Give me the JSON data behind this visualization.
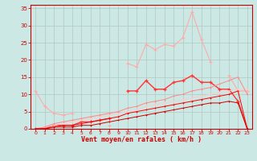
{
  "title": "",
  "xlabel": "Vent moyen/en rafales ( km/h )",
  "ylabel": "",
  "bg_color": "#cce8e4",
  "grid_color": "#b0c8c4",
  "xlim": [
    -0.5,
    23.5
  ],
  "ylim": [
    0,
    36
  ],
  "yticks": [
    0,
    5,
    10,
    15,
    20,
    25,
    30,
    35
  ],
  "xticks": [
    0,
    1,
    2,
    3,
    4,
    5,
    6,
    7,
    8,
    9,
    10,
    11,
    12,
    13,
    14,
    15,
    16,
    17,
    18,
    19,
    20,
    21,
    22,
    23
  ],
  "x": [
    0,
    1,
    2,
    3,
    4,
    5,
    6,
    7,
    8,
    9,
    10,
    11,
    12,
    13,
    14,
    15,
    16,
    17,
    18,
    19,
    20,
    21,
    22,
    23
  ],
  "line1_color": "#ffaaaa",
  "line1_y": [
    11,
    6.5,
    4.5,
    4,
    4.5,
    null,
    null,
    null,
    1,
    null,
    19,
    18,
    24.5,
    23,
    24.5,
    24,
    26.5,
    34,
    26,
    19.5,
    null,
    15.5,
    11,
    11
  ],
  "line2_color": "#ff3333",
  "line2_y": [
    0,
    0,
    1,
    1,
    1,
    2,
    2,
    2.5,
    3,
    null,
    11,
    11,
    14,
    11.5,
    11.5,
    13.5,
    14,
    15.5,
    13.5,
    13.5,
    11.5,
    11.5,
    8,
    0
  ],
  "line3_color": "#ffcccc",
  "line3_y": [
    0,
    0.5,
    1,
    1.5,
    2,
    2.5,
    3,
    3.5,
    4,
    4.5,
    5,
    5.5,
    6.5,
    7,
    7.5,
    8,
    8.5,
    9,
    9.5,
    10,
    10.5,
    11,
    11.5,
    11.5
  ],
  "line4_color": "#ff8888",
  "line4_y": [
    0,
    0.5,
    1.5,
    2,
    2.5,
    3,
    3.5,
    4,
    4.5,
    5,
    6,
    6.5,
    7.5,
    8,
    8.5,
    9.5,
    10,
    11,
    11.5,
    12,
    13,
    14,
    15,
    10
  ],
  "line5_color": "#cc0000",
  "line5_y": [
    0,
    0,
    0.5,
    0.5,
    0.5,
    1,
    1,
    1.5,
    2,
    2.5,
    3,
    3.5,
    4,
    4.5,
    5,
    5.5,
    6,
    6.5,
    7,
    7.5,
    7.5,
    8,
    7.5,
    0
  ],
  "line6_color": "#ff0000",
  "line6_y": [
    0,
    0,
    0.5,
    1,
    1,
    1.5,
    2,
    2.5,
    3,
    3.5,
    4.5,
    5,
    5.5,
    6,
    6.5,
    7,
    7.5,
    8,
    8.5,
    9,
    9.5,
    10,
    11,
    0
  ]
}
